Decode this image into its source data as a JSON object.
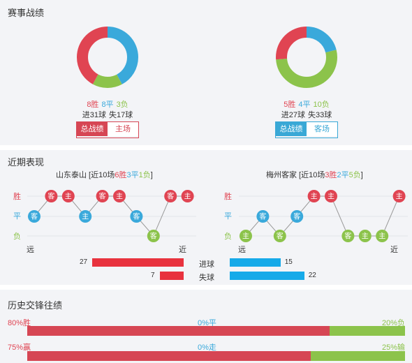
{
  "colors": {
    "win": "#e04452",
    "draw": "#3aa9db",
    "loss": "#8cc34b",
    "bar_red": "#e8323e",
    "bar_blue": "#16aae9"
  },
  "season": {
    "title": "赛事战绩",
    "home": {
      "win": "8胜",
      "draw": "8平",
      "loss": "3负",
      "scored": "进31球",
      "conceded": "失17球",
      "tab_total": "总战绩",
      "tab_venue": "主场",
      "donut": {
        "win": 8,
        "draw": 8,
        "loss": 3
      }
    },
    "away": {
      "win": "5胜",
      "draw": "4平",
      "loss": "10负",
      "scored": "进27球",
      "conceded": "失33球",
      "tab_total": "总战绩",
      "tab_venue": "客场",
      "donut": {
        "win": 5,
        "draw": 4,
        "loss": 10
      }
    }
  },
  "recent": {
    "title": "近期表现",
    "axis": {
      "win": "胜",
      "draw": "平",
      "loss": "负",
      "far": "远",
      "near": "近"
    },
    "home": {
      "name": "山东泰山",
      "hdr_pre": " [近10场",
      "win": "6胜",
      "draw": "3平",
      "loss": "1负",
      "hdr_post": "]",
      "results": [
        "D",
        "W",
        "W",
        "D",
        "W",
        "W",
        "D",
        "L",
        "W",
        "W"
      ],
      "venues": [
        "客",
        "客",
        "主",
        "主",
        "客",
        "主",
        "客",
        "客",
        "客",
        "主"
      ],
      "goals_for": 27,
      "goals_against": 7
    },
    "away": {
      "name": "梅州客家",
      "hdr_pre": " [近10场",
      "win": "3胜",
      "draw": "2平",
      "loss": "5负",
      "hdr_post": "]",
      "results": [
        "L",
        "D",
        "L",
        "D",
        "W",
        "W",
        "L",
        "L",
        "L",
        "W"
      ],
      "venues": [
        "主",
        "客",
        "客",
        "客",
        "主",
        "主",
        "客",
        "主",
        "主",
        "主"
      ],
      "goals_for": 15,
      "goals_against": 22
    },
    "goals_for_label": "进球",
    "goals_against_label": "失球"
  },
  "history": {
    "title": "历史交锋往绩",
    "row1": {
      "left": "80%胜",
      "mid": "0%平",
      "right": "20%负",
      "fill": 0.8
    },
    "row2": {
      "left": "75%赢",
      "mid": "0%走",
      "right": "25%输",
      "fill": 0.75
    }
  }
}
